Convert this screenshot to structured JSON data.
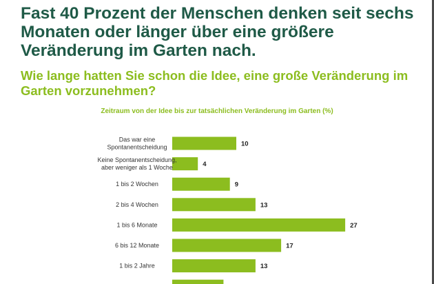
{
  "headline": "Fast 40 Prozent der Menschen denken seit sechs Monaten oder länger über eine größere Veränderung im Garten nach.",
  "question": "Wie lange hatten Sie schon die Idee, eine große Veränderung im Garten vorzunehmen?",
  "colors": {
    "headline": "#1f5a47",
    "accent": "#8cbd1f",
    "bar": "#8cbd1f"
  },
  "chart_data": {
    "type": "bar",
    "orientation": "horizontal",
    "title": "Zeitraum von der Idee bis zur tatsächlichen Veränderung im Garten (%)",
    "categories": [
      [
        "Das war eine",
        "Spontanentscheidung"
      ],
      [
        "Keine Spontanentscheidung,",
        "aber weniger als 1 Woche"
      ],
      [
        "1 bis 2 Wochen"
      ],
      [
        "2 bis 4 Wochen"
      ],
      [
        "1 bis 6 Monate"
      ],
      [
        "6 bis 12 Monate"
      ],
      [
        "1 bis 2 Jahre"
      ],
      [
        ""
      ]
    ],
    "values": [
      10,
      4,
      9,
      13,
      27,
      17,
      13,
      8
    ],
    "value_labels": [
      "10",
      "4",
      "9",
      "13",
      "27",
      "17",
      "13",
      ""
    ],
    "grid": false,
    "legend": "none"
  }
}
